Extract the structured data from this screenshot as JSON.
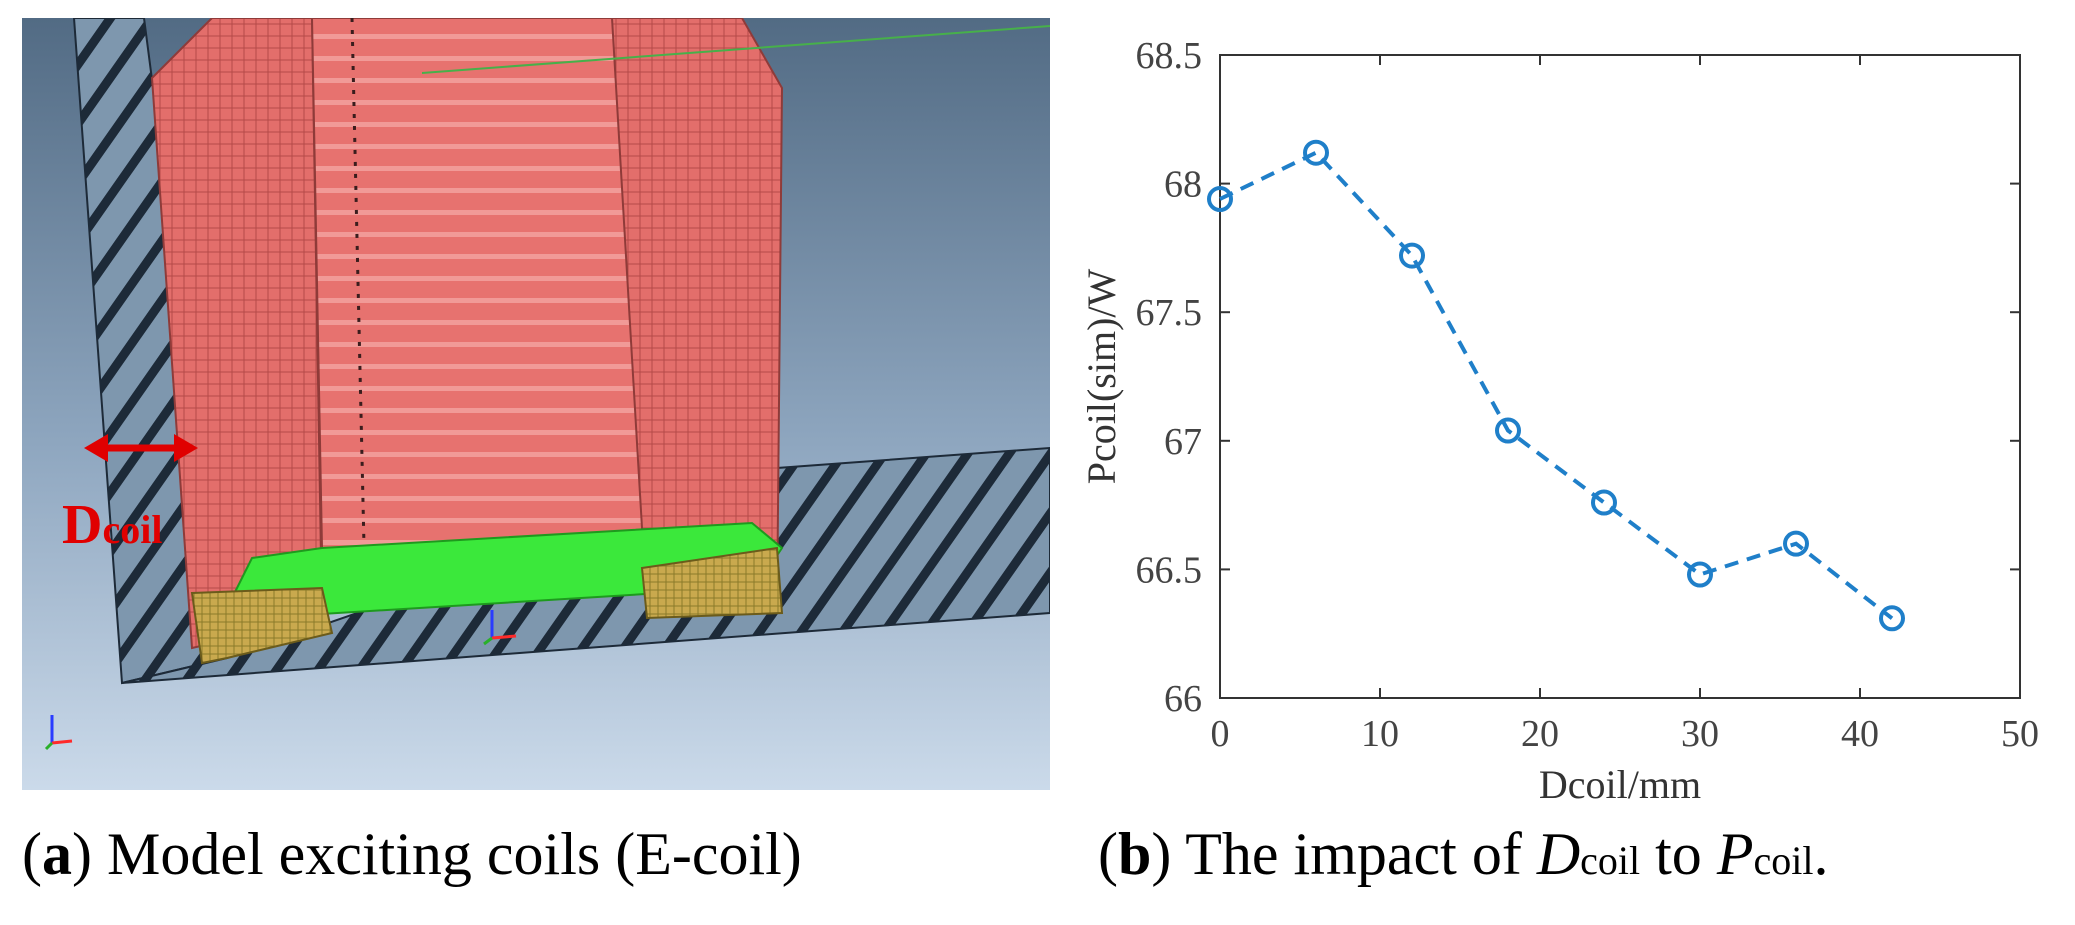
{
  "figure": {
    "panel_a": {
      "caption_letter": "a",
      "caption_text": "Model exciting coils (E-coil)",
      "dimension_label_main": "D",
      "dimension_label_sub": "coil",
      "icons": [
        "double-arrow-icon",
        "axis-triad-icon"
      ],
      "colors": {
        "coil": "#e2706e",
        "core_section": "#7f97ad",
        "background_top": "#567088",
        "background_bottom": "#c6d6e8",
        "gap_fill": "#39e83b",
        "arrow": "#e00000"
      }
    },
    "panel_b": {
      "caption_letter": "b",
      "caption_pre": "The impact of ",
      "caption_var1_main": "D",
      "caption_var1_sub": "coil",
      "caption_mid": " to ",
      "caption_var2_main": "P",
      "caption_var2_sub": "coil",
      "caption_end": "."
    }
  },
  "chart_data": {
    "type": "line",
    "line_style": "dashed",
    "marker": "circle",
    "color": "#1f7fc9",
    "xlabel": "Dcoil/mm",
    "ylabel": "Pcoil(sim)/W",
    "xlim": [
      0,
      50
    ],
    "ylim": [
      66,
      68.5
    ],
    "xticks": [
      0,
      10,
      20,
      30,
      40,
      50
    ],
    "xtick_labels": [
      "0",
      "10",
      "20",
      "30",
      "40",
      "50"
    ],
    "yticks": [
      66,
      66.5,
      67,
      67.5,
      68,
      68.5
    ],
    "ytick_labels": [
      "66",
      "66.5",
      "67",
      "67.5",
      "68",
      "68.5"
    ],
    "grid": false,
    "x": [
      0,
      6,
      12,
      18,
      24,
      30,
      36,
      42
    ],
    "series": [
      {
        "values": [
          67.94,
          68.12,
          67.72,
          67.04,
          66.76,
          66.48,
          66.6,
          66.31
        ]
      }
    ]
  }
}
